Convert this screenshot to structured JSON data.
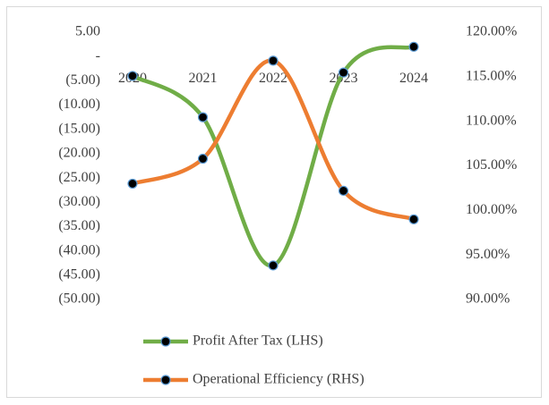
{
  "chart_data": {
    "type": "line",
    "categories": [
      "2020",
      "2021",
      "2022",
      "2023",
      "2024"
    ],
    "series": [
      {
        "name": "Profit After Tax (LHS)",
        "color": "#70ad47",
        "values": [
          -4.0,
          -12.5,
          -43.0,
          -3.3,
          2.0
        ]
      },
      {
        "name": "Operational Efficiency (RHS)",
        "color": "#ed7d31",
        "axis": "y2",
        "values": [
          103.0,
          105.8,
          116.8,
          102.2,
          99.0
        ]
      }
    ],
    "marker_color": "#000000",
    "marker_edge_color": "#5b9bd5",
    "ylim": [
      -50,
      5
    ],
    "yticks": [
      {
        "value": 5,
        "label": "5.00"
      },
      {
        "value": 0,
        "label": "-"
      },
      {
        "value": -5,
        "label": "(5.00)"
      },
      {
        "value": -10,
        "label": "(10.00)"
      },
      {
        "value": -15,
        "label": "(15.00)"
      },
      {
        "value": -20,
        "label": "(20.00)"
      },
      {
        "value": -25,
        "label": "(25.00)"
      },
      {
        "value": -30,
        "label": "(30.00)"
      },
      {
        "value": -35,
        "label": "(35.00)"
      },
      {
        "value": -40,
        "label": "(40.00)"
      },
      {
        "value": -45,
        "label": "(45.00)"
      },
      {
        "value": -50,
        "label": "(50.00)"
      }
    ],
    "y2lim": [
      90,
      120
    ],
    "y2ticks": [
      {
        "value": 90,
        "label": "90.00%"
      },
      {
        "value": 95,
        "label": "95.00%"
      },
      {
        "value": 100,
        "label": "100.00%"
      },
      {
        "value": 105,
        "label": "105.00%"
      },
      {
        "value": 110,
        "label": "110.00%"
      },
      {
        "value": 115,
        "label": "115.00%"
      },
      {
        "value": 120,
        "label": "120.00%"
      }
    ],
    "legend": "bottom"
  }
}
